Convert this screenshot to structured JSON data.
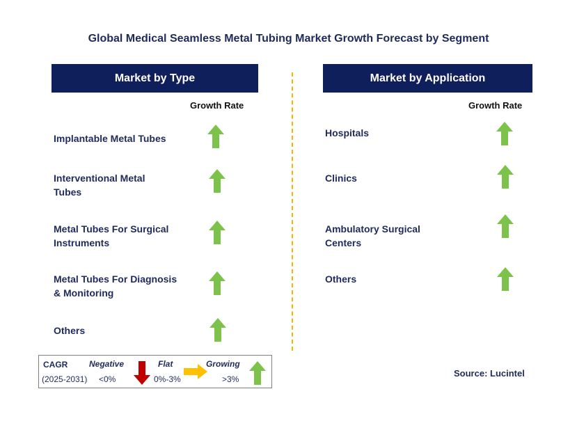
{
  "title": "Global Medical Seamless Metal Tubing Market Growth Forecast by Segment",
  "left_panel": {
    "header": "Market by Type",
    "growth_label": "Growth Rate",
    "items": [
      {
        "label": "Implantable Metal Tubes",
        "trend": "growing"
      },
      {
        "label": "Interventional Metal Tubes",
        "trend": "growing"
      },
      {
        "label": "Metal Tubes For Surgical Instruments",
        "trend": "growing"
      },
      {
        "label": "Metal Tubes For Diagnosis & Monitoring",
        "trend": "growing"
      },
      {
        "label": "Others",
        "trend": "growing"
      }
    ]
  },
  "right_panel": {
    "header": "Market by Application",
    "growth_label": "Growth Rate",
    "items": [
      {
        "label": "Hospitals",
        "trend": "growing"
      },
      {
        "label": "Clinics",
        "trend": "growing"
      },
      {
        "label": "Ambulatory Surgical Centers",
        "trend": "growing"
      },
      {
        "label": "Others",
        "trend": "growing"
      }
    ]
  },
  "legend": {
    "cagr": "CAGR",
    "period": "(2025-2031)",
    "negative": "Negative",
    "negative_range": "<0%",
    "flat": "Flat",
    "flat_range": "0%-3%",
    "growing": "Growing",
    "growing_range": ">3%"
  },
  "source": "Source: Lucintel",
  "colors": {
    "header_bg": "#0f1f5c",
    "text": "#1f2a5a",
    "growing": "#7dc24b",
    "negative": "#c00000",
    "flat": "#ffc000",
    "divider": "#f2b705"
  }
}
